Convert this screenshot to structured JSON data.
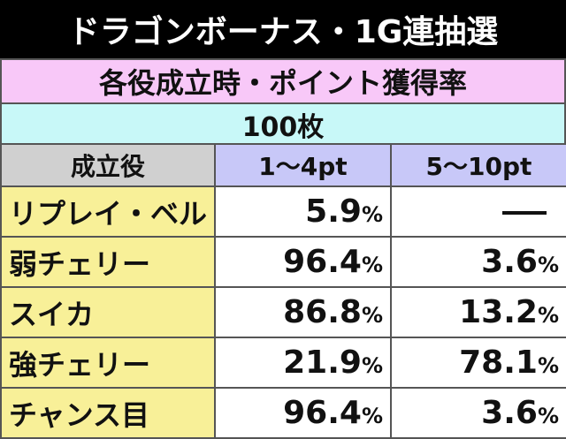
{
  "title": "ドラゴンボーナス・1G連抽選",
  "subtitle": "各役成立時・ポイント獲得率",
  "setting_label": "100枚",
  "table": {
    "headers": [
      "成立役",
      "1〜4pt",
      "5〜10pt"
    ],
    "rows": [
      {
        "role": "リプレイ・ベル",
        "v1": "5.9",
        "u1": "%",
        "v2": "",
        "u2": "",
        "dash2": true
      },
      {
        "role": "弱チェリー",
        "v1": "96.4",
        "u1": "%",
        "v2": "3.6",
        "u2": "%"
      },
      {
        "role": "スイカ",
        "v1": "86.8",
        "u1": "%",
        "v2": "13.2",
        "u2": "%"
      },
      {
        "role": "強チェリー",
        "v1": "21.9",
        "u1": "%",
        "v2": "78.1",
        "u2": "%"
      },
      {
        "role": "チャンス目",
        "v1": "96.4",
        "u1": "%",
        "v2": "3.6",
        "u2": "%"
      }
    ]
  }
}
